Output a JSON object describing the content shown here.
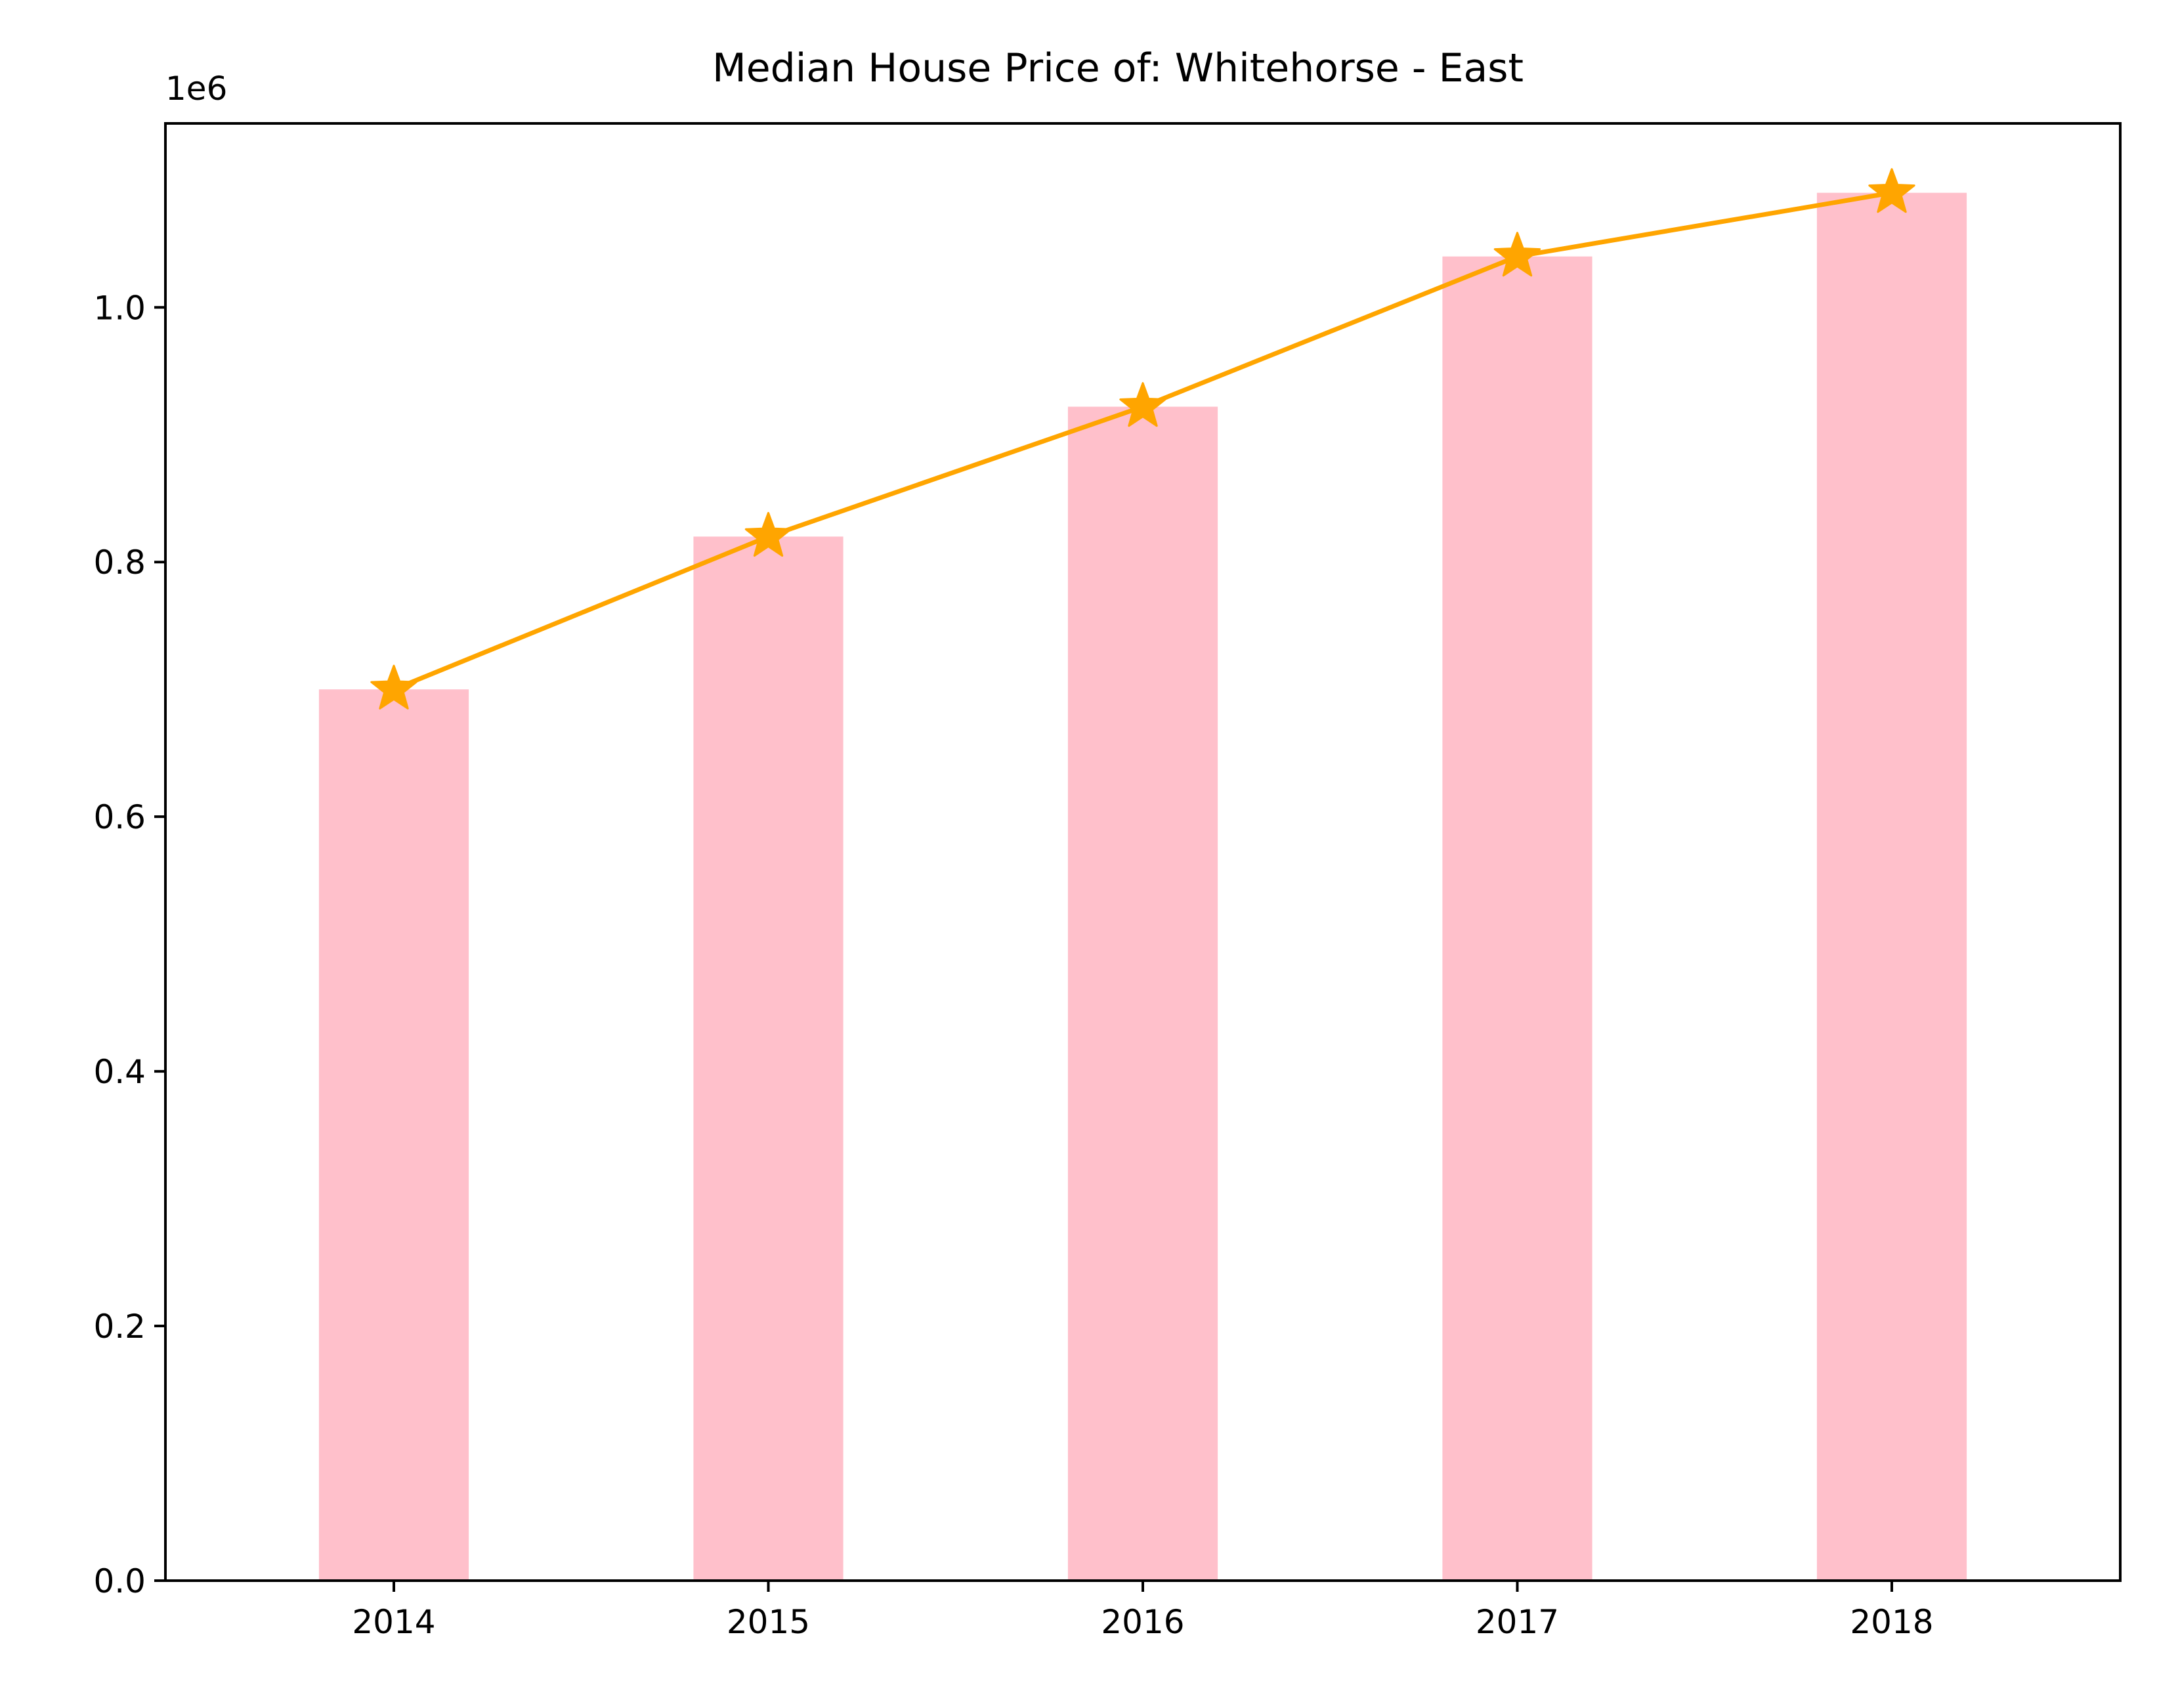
{
  "chart_data": {
    "type": "bar",
    "title": "Median House Price of: Whitehorse - East",
    "xlabel": "",
    "ylabel": "",
    "offset_text": "1e6",
    "categories": [
      "2014",
      "2015",
      "2016",
      "2017",
      "2018"
    ],
    "series": [
      {
        "type": "bar",
        "values": [
          700000,
          820000,
          922000,
          1040000,
          1090000
        ],
        "color": "#ffc0cb"
      },
      {
        "type": "line",
        "marker": "star",
        "values": [
          700000,
          820000,
          922000,
          1040000,
          1090000
        ],
        "color": "#ffa500"
      }
    ],
    "ylim": [
      0,
      1144500
    ],
    "yticks": [
      0,
      200000,
      400000,
      600000,
      800000,
      1000000
    ],
    "ytick_labels": [
      "0.0",
      "0.2",
      "0.4",
      "0.6",
      "0.8",
      "1.0"
    ],
    "grid": false,
    "legend": "none"
  }
}
